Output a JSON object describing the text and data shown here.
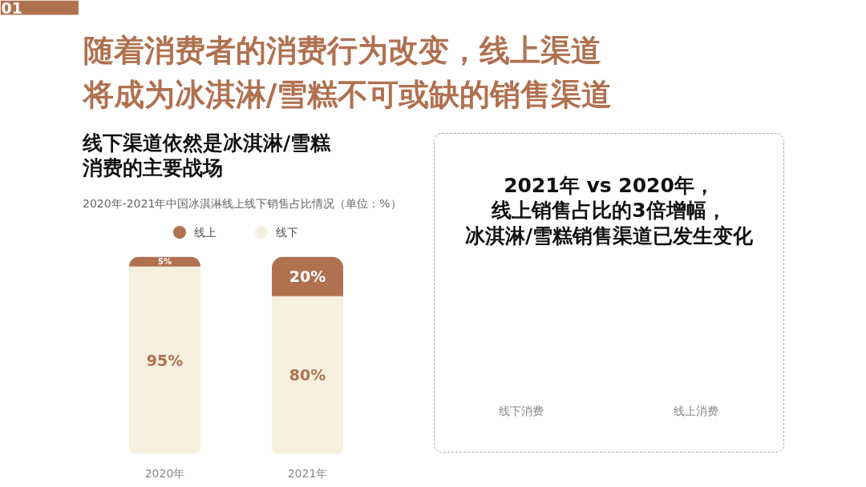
{
  "chart_data": [
    {
      "type": "bar",
      "stacked": true,
      "annotations": [
        "01",
        "随着消费者的消费行为改变，线上渠道将成为冰淇淋/雪糕不可或缺的销售渠道"
      ],
      "subtitle": "线下渠道依然是冰淇淋/雪糕消费的主要战场",
      "title": "2020年-2021年中国冰淇淋线上线下销售占比情况（单位：%）",
      "categories": [
        "2020年",
        "2021年"
      ],
      "series": [
        {
          "name": "线下",
          "color": "#f6f0df",
          "values": [
            95,
            80
          ],
          "value_labels": [
            "95%",
            "80%"
          ]
        },
        {
          "name": "线上",
          "color": "#b07150",
          "values": [
            5,
            20
          ],
          "value_labels": [
            "5%",
            "20%"
          ]
        }
      ],
      "ylim": [
        0,
        100
      ],
      "tick_labels": "x",
      "legend": "top"
    },
    {
      "type": "other",
      "title": "2021年 vs 2020年，线上销售占比的3倍增幅，冰淇淋/雪糕销售渠道已发生变化",
      "annotations": [
        "线下消费",
        "线上消费"
      ]
    }
  ]
}
